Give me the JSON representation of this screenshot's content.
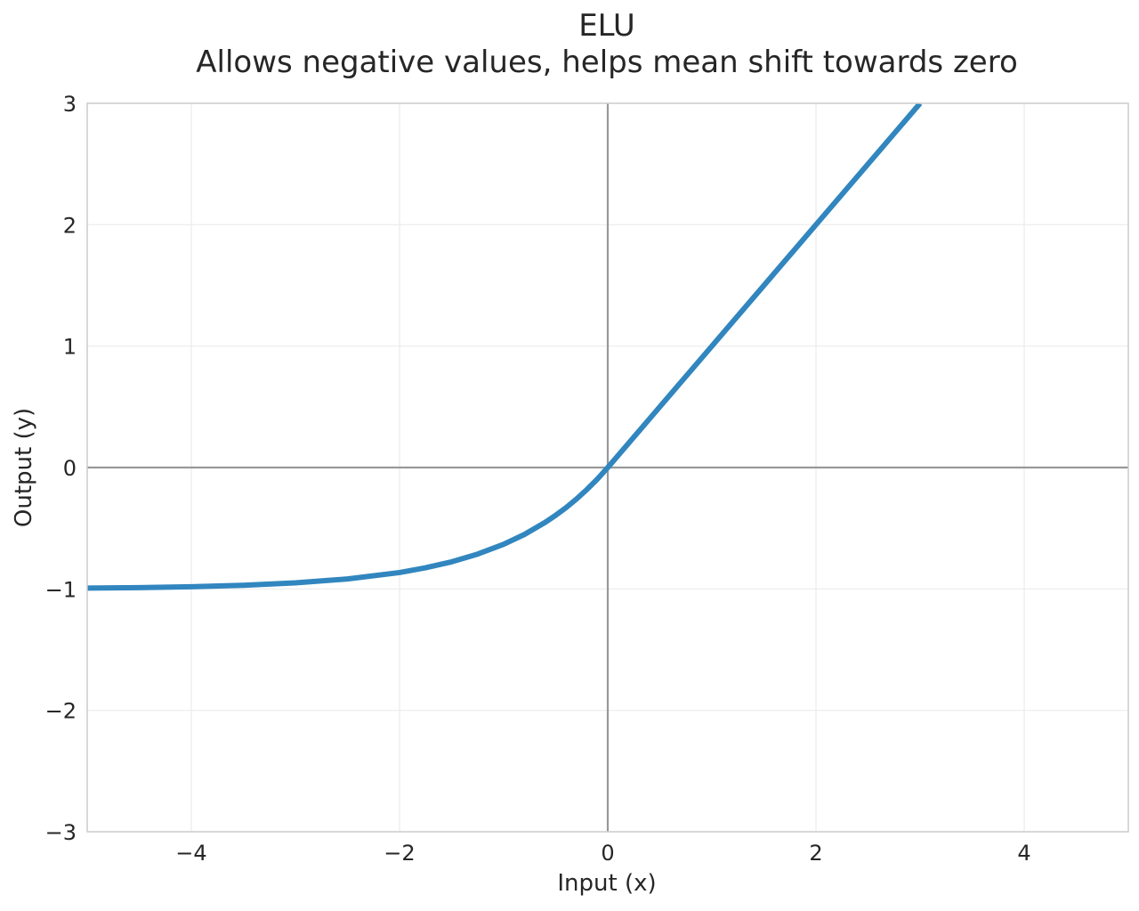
{
  "chart_data": {
    "type": "line",
    "title": "ELU",
    "subtitle": "Allows negative values, helps mean shift towards zero",
    "xlabel": "Input (x)",
    "ylabel": "Output (y)",
    "xlim": [
      -5,
      5
    ],
    "ylim": [
      -3,
      3
    ],
    "xticks": [
      -4,
      -2,
      0,
      2,
      4
    ],
    "xtick_labels": [
      "−4",
      "−2",
      "0",
      "2",
      "4"
    ],
    "yticks": [
      -3,
      -2,
      -1,
      0,
      1,
      2,
      3
    ],
    "ytick_labels": [
      "−3",
      "−2",
      "−1",
      "0",
      "1",
      "2",
      "3"
    ],
    "grid": true,
    "reference_lines": {
      "x": 0,
      "y": 0
    },
    "series": [
      {
        "color": "#3186bf",
        "x": [
          -5,
          -4.5,
          -4,
          -3.5,
          -3,
          -2.5,
          -2,
          -1.75,
          -1.5,
          -1.25,
          -1,
          -0.8,
          -0.6,
          -0.5,
          -0.4,
          -0.3,
          -0.2,
          -0.1,
          0,
          0.5,
          1,
          1.5,
          2,
          2.5,
          3
        ],
        "y": [
          -0.993,
          -0.989,
          -0.982,
          -0.97,
          -0.95,
          -0.918,
          -0.865,
          -0.826,
          -0.777,
          -0.713,
          -0.632,
          -0.551,
          -0.451,
          -0.393,
          -0.33,
          -0.259,
          -0.181,
          -0.095,
          0,
          0.5,
          1,
          1.5,
          2,
          2.5,
          3
        ]
      }
    ]
  },
  "colors": {
    "line": "#3186bf",
    "grid": "#ebebeb",
    "reference": "#999999",
    "frame": "#cccccc",
    "text": "#262626"
  }
}
